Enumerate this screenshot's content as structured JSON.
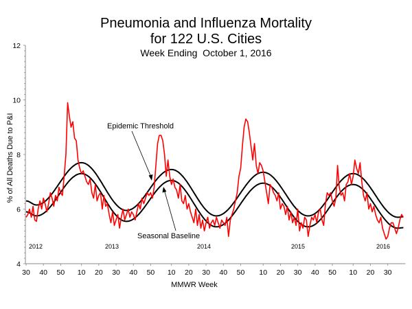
{
  "chart_data": {
    "type": "line",
    "title": "Pneumonia and Influenza Mortality",
    "title_line2": "for 122 U.S. Cities",
    "subtitle": "Week Ending  October 1, 2016",
    "xlabel": "MMWR Week",
    "ylabel": "% of All Deaths Due to P&I",
    "ylim": [
      4,
      12
    ],
    "yticks": [
      4,
      6,
      8,
      10,
      12
    ],
    "xrange": [
      {
        "year": 2012,
        "week": 30
      },
      {
        "year": 2016,
        "week": 39
      }
    ],
    "weeks_per_year": {
      "2012": 52,
      "2013": 52,
      "2014": 53,
      "2015": 52,
      "2016": 52
    },
    "xtick_labels": [
      "30",
      "40",
      "50",
      "10",
      "20",
      "30",
      "40",
      "50",
      "10",
      "20",
      "30",
      "40",
      "50",
      "10",
      "20",
      "30",
      "40",
      "50",
      "10",
      "20",
      "30"
    ],
    "xtick_weeks": [
      {
        "year": 2012,
        "week": 30
      },
      {
        "year": 2012,
        "week": 40
      },
      {
        "year": 2012,
        "week": 50
      },
      {
        "year": 2013,
        "week": 10
      },
      {
        "year": 2013,
        "week": 20
      },
      {
        "year": 2013,
        "week": 30
      },
      {
        "year": 2013,
        "week": 40
      },
      {
        "year": 2013,
        "week": 50
      },
      {
        "year": 2014,
        "week": 10
      },
      {
        "year": 2014,
        "week": 20
      },
      {
        "year": 2014,
        "week": 30
      },
      {
        "year": 2014,
        "week": 40
      },
      {
        "year": 2014,
        "week": 50
      },
      {
        "year": 2015,
        "week": 10
      },
      {
        "year": 2015,
        "week": 20
      },
      {
        "year": 2015,
        "week": 30
      },
      {
        "year": 2015,
        "week": 40
      },
      {
        "year": 2015,
        "week": 50
      },
      {
        "year": 2016,
        "week": 10
      },
      {
        "year": 2016,
        "week": 20
      },
      {
        "year": 2016,
        "week": 30
      }
    ],
    "year_labels": [
      "2012",
      "2013",
      "2014",
      "2015",
      "2016"
    ],
    "grid": false,
    "legend": "none",
    "annotations": [
      {
        "text": "Epidemic Threshold",
        "points_to": "Epidemic Threshold"
      },
      {
        "text": "Seasonal Baseline",
        "points_to": "Seasonal Baseline"
      }
    ],
    "series": [
      {
        "name": "% P&I",
        "color": "#ff0000",
        "by_year": {
          "2012": {
            "first_week": 30,
            "values": [
              5.7,
              5.8,
              6.0,
              5.7,
              6.1,
              5.6,
              5.55,
              6.0,
              6.3,
              6.0,
              6.4,
              6.2,
              5.9,
              6.2,
              6.6,
              6.4,
              6.1,
              6.5,
              6.3,
              6.8,
              6.6,
              6.5,
              7.2
            ]
          },
          "2013": {
            "first_week": 1,
            "values": [
              8.0,
              9.9,
              9.4,
              9.0,
              9.2,
              8.6,
              8.5,
              7.8,
              7.5,
              7.3,
              7.4,
              7.2,
              7.0,
              6.9,
              7.1,
              6.6,
              6.4,
              6.9,
              6.3,
              6.5,
              6.6,
              6.0,
              6.5,
              6.1,
              6.2,
              5.8,
              5.5,
              5.9,
              5.4,
              5.6,
              5.8,
              5.3,
              5.7,
              6.0,
              5.6,
              5.8,
              6.0,
              5.7,
              5.9,
              5.8,
              5.6,
              5.9,
              6.2,
              6.0,
              6.4,
              6.2,
              6.4,
              6.6,
              6.5,
              6.6,
              6.4,
              6.8
            ]
          },
          "2014": {
            "first_week": 1,
            "values": [
              7.6,
              8.4,
              8.7,
              8.7,
              8.5,
              8.0,
              7.2,
              7.8,
              7.2,
              6.9,
              7.1,
              6.8,
              6.7,
              6.4,
              6.9,
              6.3,
              6.2,
              6.5,
              6.0,
              6.2,
              5.9,
              5.7,
              5.5,
              6.0,
              5.4,
              5.8,
              5.3,
              5.6,
              5.2,
              5.5,
              5.7,
              5.3,
              5.5,
              5.6,
              5.4,
              5.7,
              5.5,
              5.3,
              5.6,
              5.5,
              5.4,
              5.7,
              5.0,
              5.6,
              5.8,
              6.0,
              6.3,
              6.6,
              7.2,
              7.5,
              8.3,
              9.0,
              9.3
            ]
          },
          "2015": {
            "first_week": 1,
            "values": [
              9.2,
              8.8,
              8.3,
              7.8,
              8.4,
              7.6,
              7.3,
              7.7,
              7.6,
              7.4,
              7.0,
              6.6,
              6.2,
              6.9,
              6.8,
              6.6,
              6.5,
              6.3,
              6.6,
              6.0,
              6.2,
              6.1,
              5.8,
              6.1,
              5.6,
              5.9,
              5.5,
              5.7,
              5.4,
              6.0,
              5.2,
              5.5,
              5.3,
              5.7,
              5.6,
              5.0,
              5.4,
              5.7,
              5.6,
              5.8,
              5.5,
              5.9,
              6.0,
              5.6,
              5.4,
              6.2,
              6.6,
              6.5,
              6.6,
              6.3,
              6.1,
              6.4
            ]
          },
          "2016": {
            "first_week": 1,
            "values": [
              7.6,
              6.8,
              6.5,
              6.6,
              6.3,
              6.9,
              7.0,
              7.3,
              6.9,
              7.2,
              7.8,
              7.5,
              7.3,
              7.7,
              7.0,
              6.5,
              6.3,
              6.6,
              6.0,
              6.2,
              5.9,
              6.1,
              5.8,
              5.6,
              5.5,
              5.7,
              5.3,
              5.1,
              4.9,
              5.0,
              5.3,
              5.5,
              5.5,
              5.3,
              5.1,
              5.3,
              5.6,
              5.8,
              5.7
            ]
          }
        }
      },
      {
        "name": "Epidemic Threshold",
        "color": "#000000",
        "extrema": [
          {
            "year": 2012,
            "week": 30,
            "value": 6.3
          },
          {
            "year": 2012,
            "week": 36,
            "value": 6.15
          },
          {
            "year": 2013,
            "week": 10,
            "value": 7.7
          },
          {
            "year": 2013,
            "week": 36,
            "value": 5.95
          },
          {
            "year": 2014,
            "week": 10,
            "value": 7.45
          },
          {
            "year": 2014,
            "week": 36,
            "value": 5.75
          },
          {
            "year": 2015,
            "week": 10,
            "value": 7.35
          },
          {
            "year": 2015,
            "week": 36,
            "value": 5.75
          },
          {
            "year": 2016,
            "week": 10,
            "value": 7.3
          },
          {
            "year": 2016,
            "week": 36,
            "value": 5.7
          },
          {
            "year": 2016,
            "week": 39,
            "value": 5.72
          }
        ]
      },
      {
        "name": "Seasonal Baseline",
        "color": "#000000",
        "extrema": [
          {
            "year": 2012,
            "week": 30,
            "value": 5.9
          },
          {
            "year": 2012,
            "week": 36,
            "value": 5.75
          },
          {
            "year": 2013,
            "week": 10,
            "value": 7.3
          },
          {
            "year": 2013,
            "week": 36,
            "value": 5.55
          },
          {
            "year": 2014,
            "week": 10,
            "value": 7.05
          },
          {
            "year": 2014,
            "week": 36,
            "value": 5.35
          },
          {
            "year": 2015,
            "week": 10,
            "value": 6.95
          },
          {
            "year": 2015,
            "week": 36,
            "value": 5.35
          },
          {
            "year": 2016,
            "week": 10,
            "value": 6.9
          },
          {
            "year": 2016,
            "week": 36,
            "value": 5.3
          },
          {
            "year": 2016,
            "week": 39,
            "value": 5.32
          }
        ]
      }
    ]
  }
}
